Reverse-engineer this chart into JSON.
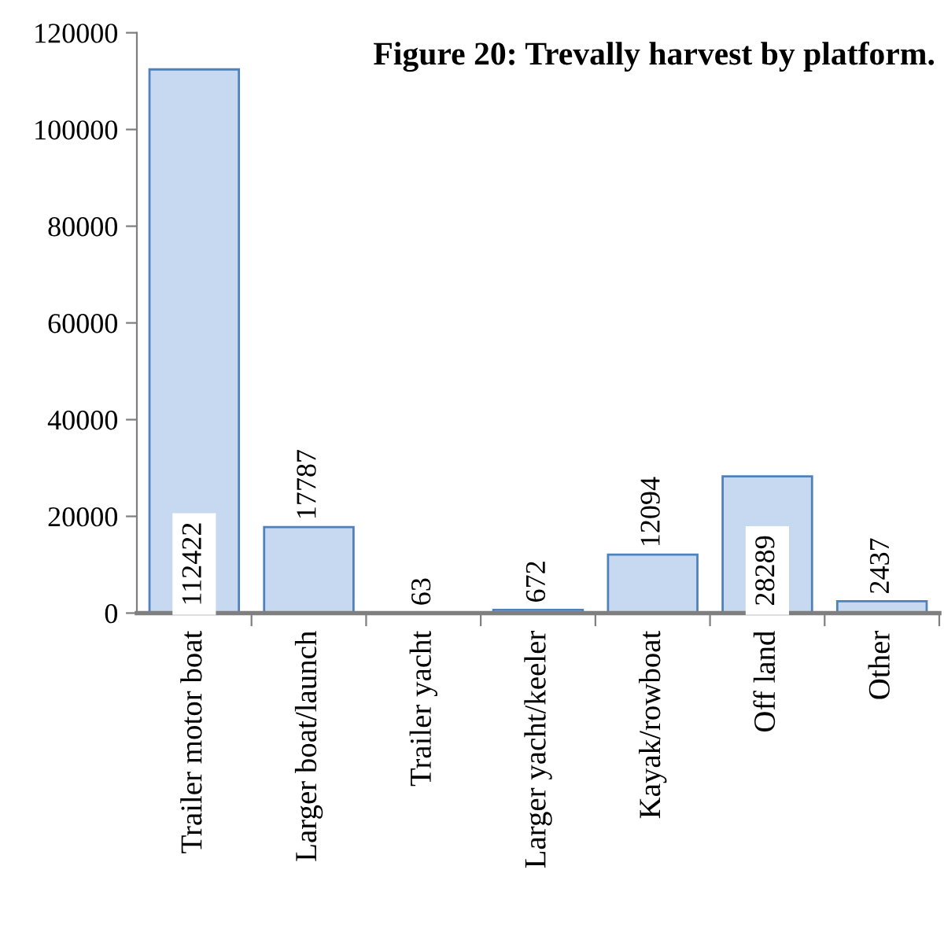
{
  "chart_data": {
    "type": "bar",
    "title": "Figure 20: Trevally harvest by platform.",
    "categories": [
      "Trailer motor boat",
      "Larger boat/launch",
      "Trailer yacht",
      "Larger yacht/keeler",
      "Kayak/rowboat",
      "Off land",
      "Other"
    ],
    "values": [
      112422,
      17787,
      63,
      672,
      12094,
      28289,
      2437
    ],
    "color": "#c6d9f1",
    "ylim": [
      0,
      120000
    ],
    "yticks": [
      0,
      20000,
      40000,
      60000,
      80000,
      100000,
      120000
    ],
    "grid": false,
    "data_labels": true
  }
}
